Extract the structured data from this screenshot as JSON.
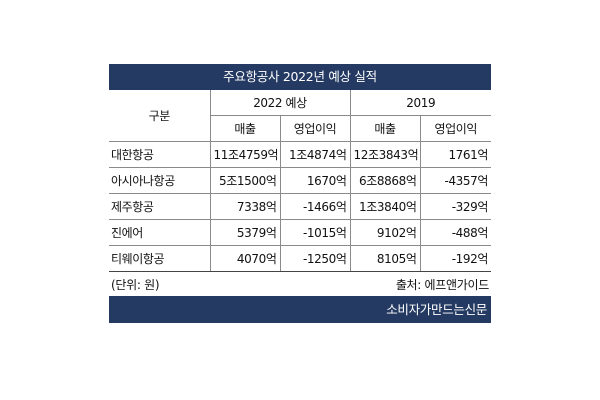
{
  "title": "주요항공사 2022년 예상 실적",
  "header": {
    "category": "구분",
    "period_2022": "2022 예상",
    "period_2019": "2019",
    "revenue": "매출",
    "operating_profit": "영업이익"
  },
  "rows": [
    {
      "name": "대한항공",
      "rev_2022": "11조4759억",
      "op_2022": "1조4874억",
      "rev_2019": "12조3843억",
      "op_2019": "1761억"
    },
    {
      "name": "아시아나항공",
      "rev_2022": "5조1500억",
      "op_2022": "1670억",
      "rev_2019": "6조8868억",
      "op_2019": "-4357억"
    },
    {
      "name": "제주항공",
      "rev_2022": "7338억",
      "op_2022": "-1466억",
      "rev_2019": "1조3840억",
      "op_2019": "-329억"
    },
    {
      "name": "진에어",
      "rev_2022": "5379억",
      "op_2022": "-1015억",
      "rev_2019": "9102억",
      "op_2019": "-488억"
    },
    {
      "name": "티웨이항공",
      "rev_2022": "4070억",
      "op_2022": "-1250억",
      "rev_2019": "8105억",
      "op_2019": "-192억"
    }
  ],
  "footer": {
    "unit": "(단위: 원)",
    "source": "출처: 에프앤가이드"
  },
  "brand": "소비자가만드는신문",
  "colors": {
    "header_bar": "#253a63",
    "header_text": "#ffffff"
  }
}
